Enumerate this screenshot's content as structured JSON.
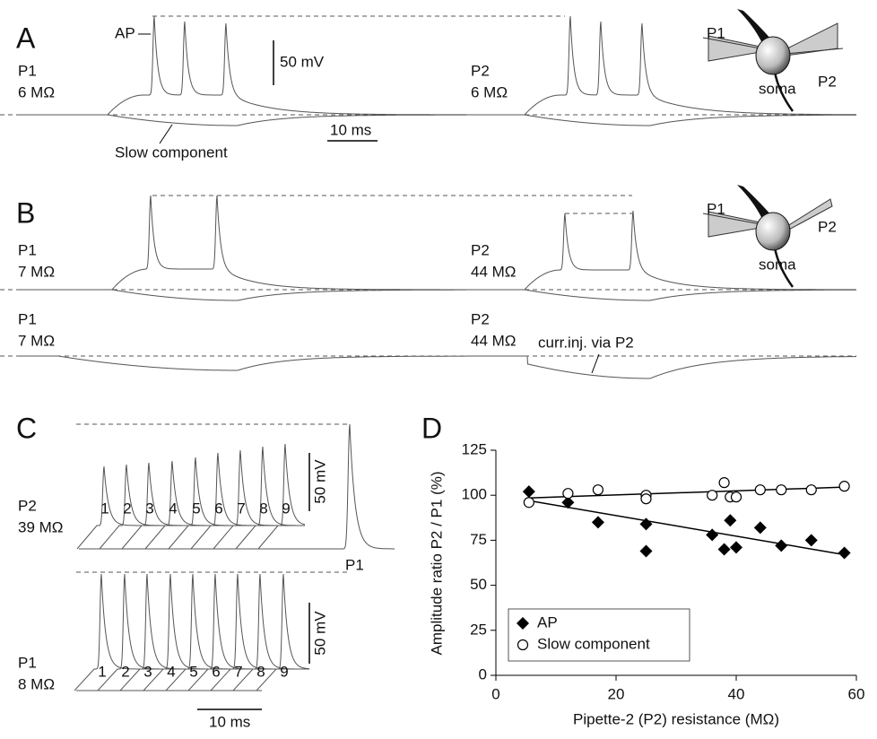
{
  "panel_a": {
    "letter": "A",
    "ap": "AP",
    "p1": "P1",
    "p1_res": "6 MΩ",
    "p2": "P2",
    "p2_res": "6 MΩ",
    "scale_v": "50 mV",
    "scale_t": "10 ms",
    "slow": "Slow component",
    "inset_p1": "P1",
    "inset_p2": "P2",
    "soma": "soma"
  },
  "panel_b": {
    "letter": "B",
    "top_p1": "P1",
    "top_p1_res": "7 MΩ",
    "top_p2": "P2",
    "top_p2_res": "44 MΩ",
    "bottom_p1": "P1",
    "bottom_p1_res": "7 MΩ",
    "bottom_p2": "P2",
    "bottom_p2_res": "44 MΩ",
    "curr_inj": "curr.inj. via P2",
    "inset_p1": "P1",
    "inset_p2": "P2",
    "soma": "soma"
  },
  "panel_c": {
    "letter": "C",
    "top_label": "P2",
    "top_res": "39 MΩ",
    "top_numbers": [
      "1",
      "2",
      "3",
      "4",
      "5",
      "6",
      "7",
      "8",
      "9"
    ],
    "top_scale_v": "50 mV",
    "p1_ref": "P1",
    "bottom_label": "P1",
    "bottom_res": "8 MΩ",
    "bottom_numbers": [
      "1",
      "2",
      "3",
      "4",
      "5",
      "6",
      "7",
      "8",
      "9"
    ],
    "bottom_scale_v": "50 mV",
    "scale_t": "10 ms"
  },
  "panel_d": {
    "letter": "D"
  },
  "chart_data": {
    "type": "scatter",
    "x_label": "Pipette-2 (P2) resistance (MΩ)",
    "y_label": "Amplitude ratio P2 / P1 (%)",
    "xlim": [
      0,
      60
    ],
    "ylim": [
      0,
      125
    ],
    "xticks": [
      0,
      20,
      40,
      60
    ],
    "yticks": [
      0,
      25,
      50,
      75,
      100,
      125
    ],
    "legend": "lower left",
    "series": [
      {
        "name": "AP",
        "color": "#000000",
        "marker": "diamond",
        "x": [
          5.5,
          12,
          17,
          25,
          25,
          36,
          38,
          39,
          40,
          44,
          47.5,
          52.5,
          58
        ],
        "values": [
          102,
          96,
          85,
          84,
          69,
          78,
          70,
          86,
          71,
          82,
          72,
          75,
          68
        ]
      },
      {
        "name": "Slow component",
        "color": "#000000",
        "marker": "circle",
        "x": [
          5.5,
          12,
          17,
          25,
          25,
          36,
          38,
          39,
          40,
          44,
          47.5,
          52.5,
          58
        ],
        "values": [
          96,
          101,
          103,
          100,
          98,
          100,
          107,
          99,
          99,
          103,
          103,
          103,
          105
        ]
      }
    ],
    "trend_lines": [
      {
        "x": [
          5.5,
          58
        ],
        "values": [
          97,
          67
        ]
      },
      {
        "x": [
          5.5,
          58
        ],
        "values": [
          98.5,
          104.5
        ]
      }
    ]
  }
}
